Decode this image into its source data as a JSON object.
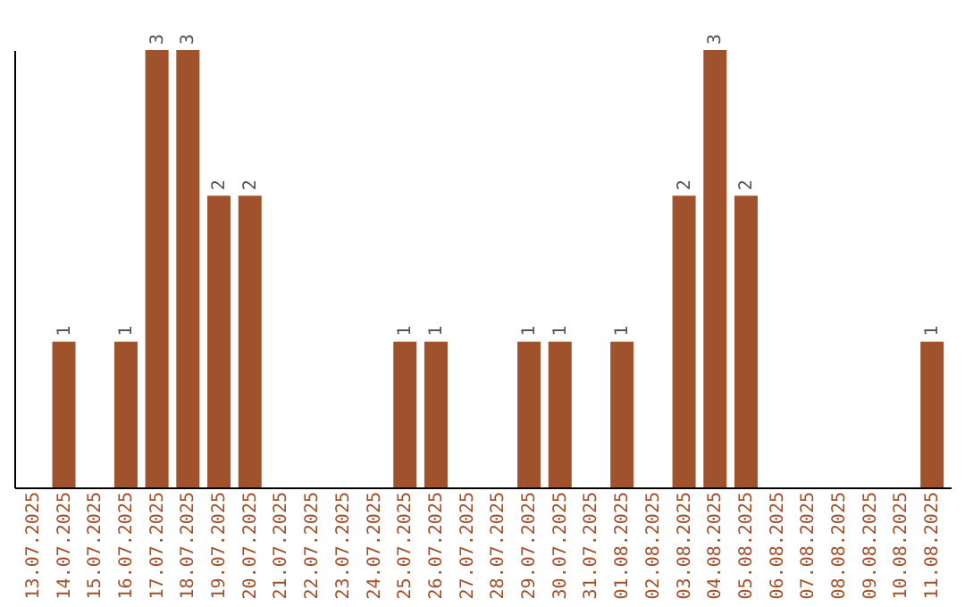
{
  "chart_data": {
    "type": "bar",
    "categories": [
      "13.07.2025",
      "14.07.2025",
      "15.07.2025",
      "16.07.2025",
      "17.07.2025",
      "18.07.2025",
      "19.07.2025",
      "20.07.2025",
      "21.07.2025",
      "22.07.2025",
      "23.07.2025",
      "24.07.2025",
      "25.07.2025",
      "26.07.2025",
      "27.07.2025",
      "28.07.2025",
      "29.07.2025",
      "30.07.2025",
      "31.07.2025",
      "01.08.2025",
      "02.08.2025",
      "03.08.2025",
      "04.08.2025",
      "05.08.2025",
      "06.08.2025",
      "07.08.2025",
      "08.08.2025",
      "09.08.2025",
      "10.08.2025",
      "11.08.2025"
    ],
    "values": [
      0,
      1,
      0,
      1,
      3,
      3,
      2,
      2,
      0,
      0,
      0,
      0,
      1,
      1,
      0,
      0,
      1,
      1,
      0,
      1,
      0,
      2,
      3,
      2,
      0,
      0,
      0,
      0,
      0,
      1
    ],
    "value_labels": [
      null,
      "1",
      null,
      "1",
      "3",
      "3",
      "2",
      "2",
      null,
      null,
      null,
      null,
      "1",
      "1",
      null,
      null,
      "1",
      "1",
      null,
      "1",
      null,
      "2",
      "3",
      "2",
      null,
      null,
      null,
      null,
      null,
      "1"
    ],
    "color": "#a0522d",
    "ylim": [
      0,
      3
    ],
    "tick_labels": "x"
  }
}
